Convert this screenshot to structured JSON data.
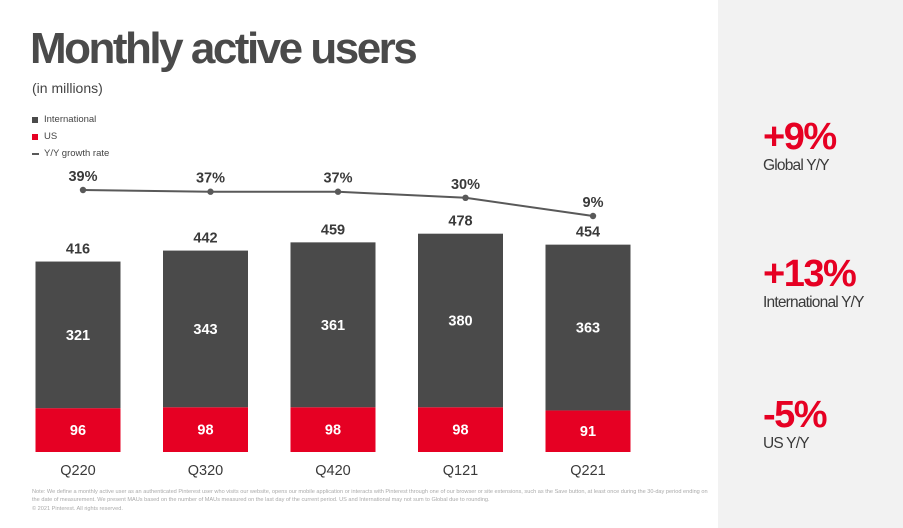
{
  "slide": {
    "title": "Monthly active users",
    "subtitle": "(in millions)",
    "footnote": "Note: We define a monthly active user as an authenticated Pinterest user who visits our website, opens our mobile application or interacts with Pinterest through one of our browser or site extensions, such as the Save button, at least once during the 30-day period ending on the date of measurement. We present MAUs based on the number of MAUs measured on the last day of the current period. US and International may not sum to Global due to rounding.",
    "copyright": "© 2021 Pinterest. All rights reserved."
  },
  "colors": {
    "international": "#4a4a4a",
    "us": "#e60023",
    "growth_line": "#595959",
    "accent": "#e60023",
    "panel_background": "#f2f2f2"
  },
  "chart_data": {
    "type": "bar",
    "stacked": true,
    "title": "Monthly active users",
    "subtitle": "(in millions)",
    "categories": [
      "Q220",
      "Q320",
      "Q420",
      "Q121",
      "Q221"
    ],
    "series": [
      {
        "name": "US",
        "values": [
          96,
          98,
          98,
          98,
          91
        ]
      },
      {
        "name": "International",
        "values": [
          321,
          343,
          361,
          380,
          363
        ]
      }
    ],
    "totals": [
      416,
      442,
      459,
      478,
      454
    ],
    "line_series": {
      "name": "Y/Y growth rate",
      "values": [
        39,
        37,
        37,
        30,
        9
      ],
      "labels": [
        "39%",
        "37%",
        "37%",
        "30%",
        "9%"
      ]
    },
    "legend": [
      "International",
      "US",
      "Y/Y growth rate"
    ],
    "legend_position": "top-left",
    "grid": false,
    "ylim": [
      0,
      500
    ]
  },
  "kpis": [
    {
      "value": "+9%",
      "label": "Global Y/Y"
    },
    {
      "value": "+13%",
      "label": "International Y/Y"
    },
    {
      "value": "-5%",
      "label": "US Y/Y"
    }
  ]
}
